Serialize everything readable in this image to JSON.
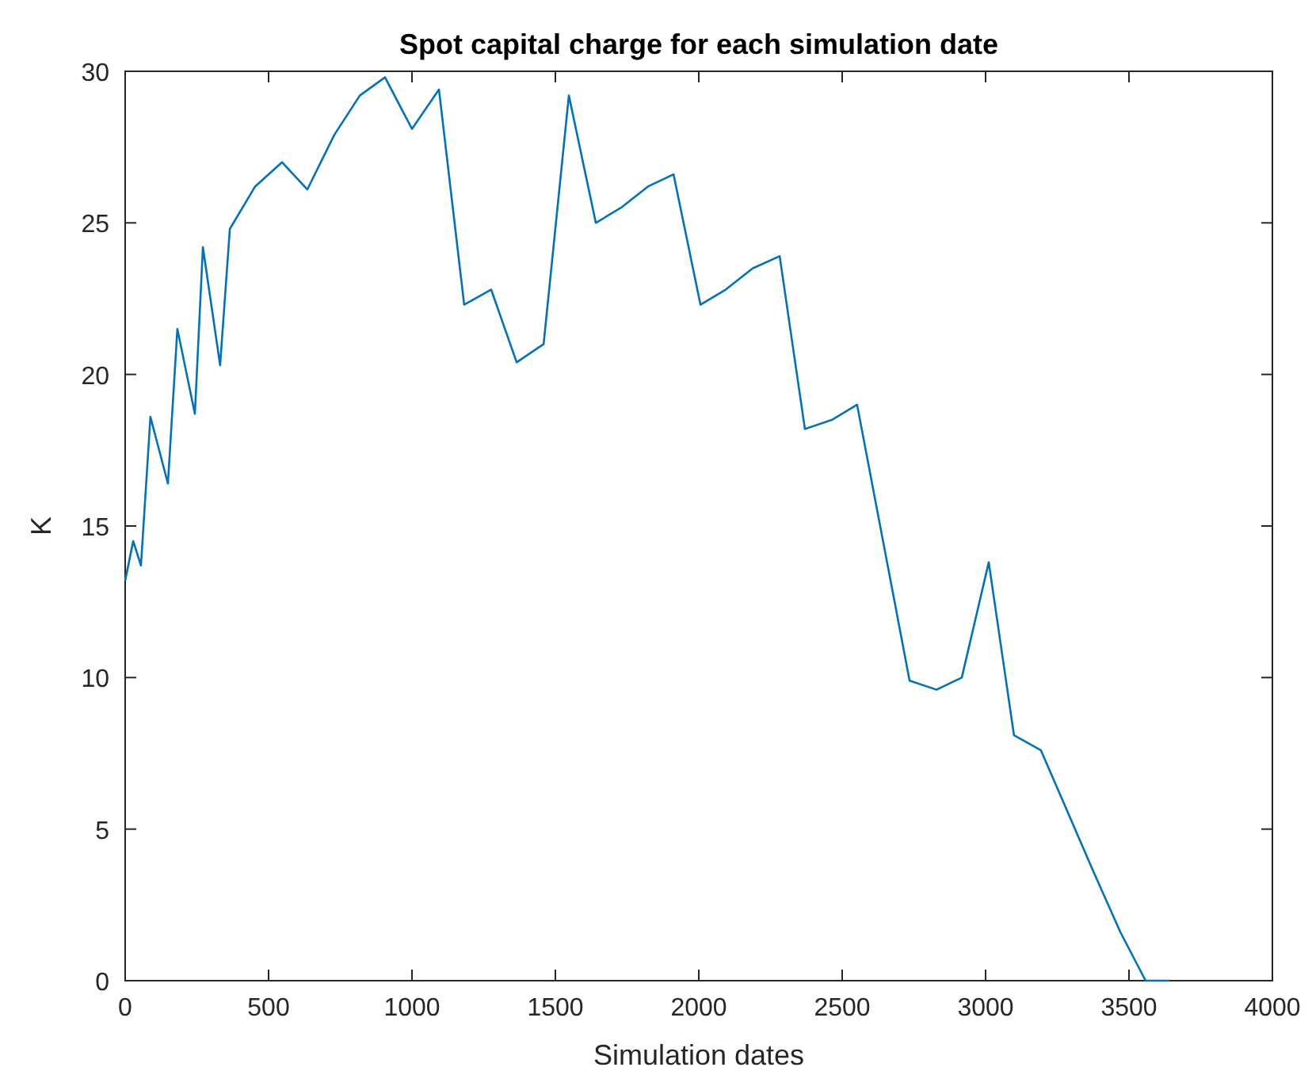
{
  "chart_data": {
    "type": "line",
    "title": "Spot capital charge for each simulation date",
    "xlabel": "Simulation dates",
    "ylabel": "K",
    "x": [
      0,
      28,
      55,
      88,
      149,
      182,
      243,
      271,
      331,
      365,
      453,
      547,
      635,
      729,
      818,
      906,
      1000,
      1094,
      1182,
      1276,
      1365,
      1459,
      1547,
      1641,
      1729,
      1823,
      1912,
      2006,
      2094,
      2188,
      2282,
      2370,
      2464,
      2552,
      2735,
      2829,
      2917,
      3011,
      3099,
      3193,
      3376,
      3470,
      3558,
      3641
    ],
    "series": [
      {
        "color": "#0072bd",
        "values": [
          13.2,
          14.5,
          13.7,
          18.6,
          16.4,
          21.5,
          18.7,
          24.2,
          20.3,
          24.8,
          26.2,
          27.0,
          26.1,
          27.9,
          29.2,
          29.8,
          28.1,
          29.4,
          22.3,
          22.8,
          20.4,
          21.0,
          29.2,
          25.0,
          25.5,
          26.2,
          26.6,
          22.3,
          22.8,
          23.5,
          23.9,
          18.2,
          18.5,
          19.0,
          9.9,
          9.6,
          10.0,
          13.8,
          8.1,
          7.6,
          3.6,
          1.6,
          0,
          0
        ]
      }
    ],
    "xlim": [
      0,
      4000
    ],
    "xticks": [
      0,
      500,
      1000,
      1500,
      2000,
      2500,
      3000,
      3500,
      4000
    ],
    "ylim": [
      0,
      30
    ],
    "yticks": [
      0,
      5,
      10,
      15,
      20,
      25,
      30
    ],
    "grid": false,
    "marker": "none",
    "line_style": "solid"
  }
}
